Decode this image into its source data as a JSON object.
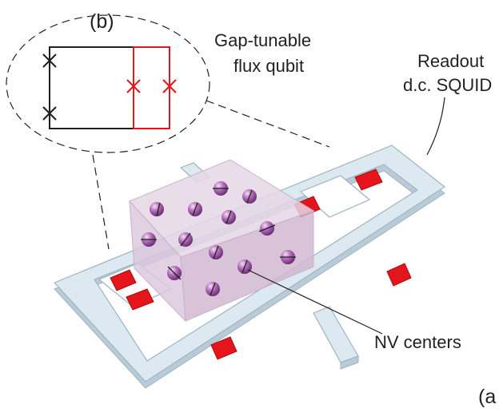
{
  "labels": {
    "panel_b": "(b)",
    "panel_a": "(a",
    "qubit_line1": "Gap-tunable",
    "qubit_line2": "flux qubit",
    "squid_line1": "Readout",
    "squid_line2": "d.c. SQUID",
    "nv": "NV centers"
  },
  "colors": {
    "wire_fill": "#dde9f1",
    "wire_edge": "#9fb4c2",
    "wire_side": "#b9cbd7",
    "junction": "#e4161c",
    "junction_dark": "#a60f12",
    "diamond_top": "#e6d7e6",
    "diamond_front": "#dcc6dd",
    "diamond_side": "#cfb6d1",
    "nv_sphere": "#a05aa8",
    "line": "#231f20",
    "qubit_red": "#e4161c"
  }
}
